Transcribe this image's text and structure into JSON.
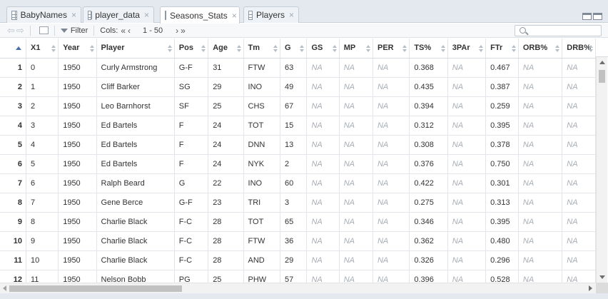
{
  "tabs": [
    {
      "label": "BabyNames",
      "active": false
    },
    {
      "label": "player_data",
      "active": false
    },
    {
      "label": "Seasons_Stats",
      "active": true
    },
    {
      "label": "Players",
      "active": false
    }
  ],
  "toolbar": {
    "filter_label": "Filter",
    "cols_label": "Cols:",
    "cols_range": "1 - 50"
  },
  "columns": [
    "X1",
    "Year",
    "Player",
    "Pos",
    "Age",
    "Tm",
    "G",
    "GS",
    "MP",
    "PER",
    "TS%",
    "3PAr",
    "FTr",
    "ORB%",
    "DRB%"
  ],
  "rows": [
    [
      "1",
      "0",
      "1950",
      "Curly Armstrong",
      "G-F",
      "31",
      "FTW",
      "63",
      "NA",
      "NA",
      "NA",
      "0.368",
      "NA",
      "0.467",
      "NA",
      "NA"
    ],
    [
      "2",
      "1",
      "1950",
      "Cliff Barker",
      "SG",
      "29",
      "INO",
      "49",
      "NA",
      "NA",
      "NA",
      "0.435",
      "NA",
      "0.387",
      "NA",
      "NA"
    ],
    [
      "3",
      "2",
      "1950",
      "Leo Barnhorst",
      "SF",
      "25",
      "CHS",
      "67",
      "NA",
      "NA",
      "NA",
      "0.394",
      "NA",
      "0.259",
      "NA",
      "NA"
    ],
    [
      "4",
      "3",
      "1950",
      "Ed Bartels",
      "F",
      "24",
      "TOT",
      "15",
      "NA",
      "NA",
      "NA",
      "0.312",
      "NA",
      "0.395",
      "NA",
      "NA"
    ],
    [
      "5",
      "4",
      "1950",
      "Ed Bartels",
      "F",
      "24",
      "DNN",
      "13",
      "NA",
      "NA",
      "NA",
      "0.308",
      "NA",
      "0.378",
      "NA",
      "NA"
    ],
    [
      "6",
      "5",
      "1950",
      "Ed Bartels",
      "F",
      "24",
      "NYK",
      "2",
      "NA",
      "NA",
      "NA",
      "0.376",
      "NA",
      "0.750",
      "NA",
      "NA"
    ],
    [
      "7",
      "6",
      "1950",
      "Ralph Beard",
      "G",
      "22",
      "INO",
      "60",
      "NA",
      "NA",
      "NA",
      "0.422",
      "NA",
      "0.301",
      "NA",
      "NA"
    ],
    [
      "8",
      "7",
      "1950",
      "Gene Berce",
      "G-F",
      "23",
      "TRI",
      "3",
      "NA",
      "NA",
      "NA",
      "0.275",
      "NA",
      "0.313",
      "NA",
      "NA"
    ],
    [
      "9",
      "8",
      "1950",
      "Charlie Black",
      "F-C",
      "28",
      "TOT",
      "65",
      "NA",
      "NA",
      "NA",
      "0.346",
      "NA",
      "0.395",
      "NA",
      "NA"
    ],
    [
      "10",
      "9",
      "1950",
      "Charlie Black",
      "F-C",
      "28",
      "FTW",
      "36",
      "NA",
      "NA",
      "NA",
      "0.362",
      "NA",
      "0.480",
      "NA",
      "NA"
    ],
    [
      "11",
      "10",
      "1950",
      "Charlie Black",
      "F-C",
      "28",
      "AND",
      "29",
      "NA",
      "NA",
      "NA",
      "0.326",
      "NA",
      "0.296",
      "NA",
      "NA"
    ],
    [
      "12",
      "11",
      "1950",
      "Nelson Bobb",
      "PG",
      "25",
      "PHW",
      "57",
      "NA",
      "NA",
      "NA",
      "0.396",
      "NA",
      "0.528",
      "NA",
      "NA"
    ]
  ]
}
